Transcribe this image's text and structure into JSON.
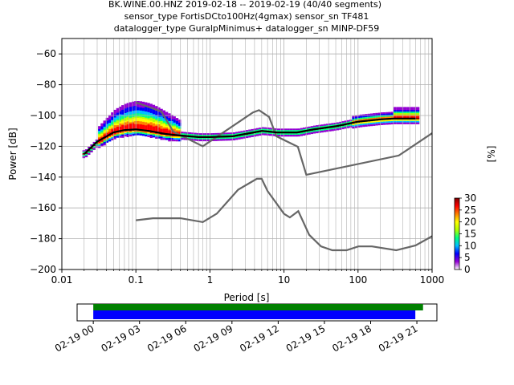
{
  "title": {
    "line1": "BK.WINE.00.HNZ   2019-02-18 -- 2019-02-19  (40/40 segments)",
    "line2": "sensor_type FortisDCto100Hz(4gmax) sensor_sn TF481",
    "line3": "datalogger_type GuralpMinimus+ datalogger_sn MINP-DF59"
  },
  "chart_data": [
    {
      "type": "heatmap",
      "subtype": "ppsd",
      "xlabel": "Period [s]",
      "ylabel": "Power [dB]",
      "xscale": "log",
      "xlim": [
        0.01,
        1000
      ],
      "ylim": [
        -200,
        -50
      ],
      "xticks": [
        0.01,
        0.1,
        1,
        10,
        100,
        1000
      ],
      "xtick_labels": [
        "0.01",
        "0.1",
        "1",
        "10",
        "100",
        "1000"
      ],
      "yticks": [
        -200,
        -180,
        -160,
        -140,
        -120,
        -100,
        -80,
        -60
      ],
      "ytick_labels": [
        "−200",
        "−180",
        "−160",
        "−140",
        "−120",
        "−100",
        "−80",
        "−60"
      ],
      "grid": true,
      "colorbar": {
        "label": "[%]",
        "min": 0,
        "max": 30,
        "ticks": [
          "0",
          "5",
          "10",
          "15",
          "20",
          "25",
          "30"
        ],
        "colors": [
          "#ffffff",
          "#9400d3",
          "#0000ff",
          "#00bfff",
          "#00ff80",
          "#b0ff00",
          "#ffff00",
          "#ff8000",
          "#ff0000",
          "#800000"
        ]
      },
      "noise_models": {
        "high": [
          [
            0.1,
            -91.5
          ],
          [
            0.22,
            -97.4
          ],
          [
            0.32,
            -110.5
          ],
          [
            0.8,
            -120
          ],
          [
            3.8,
            -98
          ],
          [
            4.6,
            -96.5
          ],
          [
            6.3,
            -101
          ],
          [
            7.9,
            -113.5
          ],
          [
            15.4,
            -120.3
          ],
          [
            20,
            -138.5
          ],
          [
            354.8,
            -126
          ],
          [
            1000,
            -111.5
          ]
        ],
        "low": [
          [
            0.1,
            -168
          ],
          [
            0.17,
            -166.7
          ],
          [
            0.4,
            -166.7
          ],
          [
            0.8,
            -169.2
          ],
          [
            1.24,
            -163.7
          ],
          [
            2.4,
            -148.2
          ],
          [
            4.3,
            -141.1
          ],
          [
            5.0,
            -141.1
          ],
          [
            6.0,
            -149
          ],
          [
            10.0,
            -163.8
          ],
          [
            12.0,
            -166.2
          ],
          [
            15.6,
            -162.1
          ],
          [
            21.9,
            -177.5
          ],
          [
            31.6,
            -185
          ],
          [
            45,
            -187.5
          ],
          [
            70,
            -187.5
          ],
          [
            101,
            -185
          ],
          [
            154,
            -185
          ],
          [
            328,
            -187.5
          ],
          [
            600,
            -184.4
          ],
          [
            1000,
            -178.4
          ]
        ]
      },
      "mode_curve": [
        [
          0.02,
          -125
        ],
        [
          0.03,
          -117
        ],
        [
          0.05,
          -111
        ],
        [
          0.07,
          -109.5
        ],
        [
          0.1,
          -109
        ],
        [
          0.15,
          -110
        ],
        [
          0.25,
          -112
        ],
        [
          0.4,
          -113
        ],
        [
          0.7,
          -114
        ],
        [
          1,
          -114
        ],
        [
          2,
          -113.5
        ],
        [
          3,
          -112
        ],
        [
          5,
          -110
        ],
        [
          8,
          -111
        ],
        [
          15,
          -111
        ],
        [
          25,
          -109
        ],
        [
          50,
          -107
        ],
        [
          100,
          -104
        ],
        [
          200,
          -102.5
        ],
        [
          300,
          -102
        ],
        [
          600,
          -102
        ]
      ],
      "distribution_sample": [
        {
          "period": 0.05,
          "power": -98,
          "percent": 1
        },
        {
          "period": 0.07,
          "power": -94,
          "percent": 2
        },
        {
          "period": 0.08,
          "power": -91,
          "percent": 2
        },
        {
          "period": 0.1,
          "power": -104,
          "percent": 4
        },
        {
          "period": 0.1,
          "power": -108,
          "percent": 12
        },
        {
          "period": 0.2,
          "power": -106,
          "percent": 3
        },
        {
          "period": 0.3,
          "power": -112,
          "percent": 25
        },
        {
          "period": 0.5,
          "power": -113,
          "percent": 28
        },
        {
          "period": 2,
          "power": -113,
          "percent": 30
        },
        {
          "period": 10,
          "power": -111,
          "percent": 30
        },
        {
          "period": 50,
          "power": -108,
          "percent": 18
        },
        {
          "period": 100,
          "power": -104,
          "percent": 10
        },
        {
          "period": 300,
          "power": -102,
          "percent": 8
        },
        {
          "period": 600,
          "power": -97,
          "percent": 2
        }
      ]
    },
    {
      "type": "timeline",
      "xtick_labels": [
        "02-19 00",
        "02-19 03",
        "02-19 06",
        "02-19 09",
        "02-19 12",
        "02-19 15",
        "02-19 18",
        "02-19 21"
      ],
      "bars": [
        {
          "label": "data",
          "color": "#008000",
          "start_h": 0,
          "end_h": 21.4
        },
        {
          "label": "used",
          "color": "#0000ff",
          "start_h": 0,
          "end_h": 20.9
        }
      ],
      "xlim_h": [
        -1.05,
        22.3
      ]
    }
  ]
}
